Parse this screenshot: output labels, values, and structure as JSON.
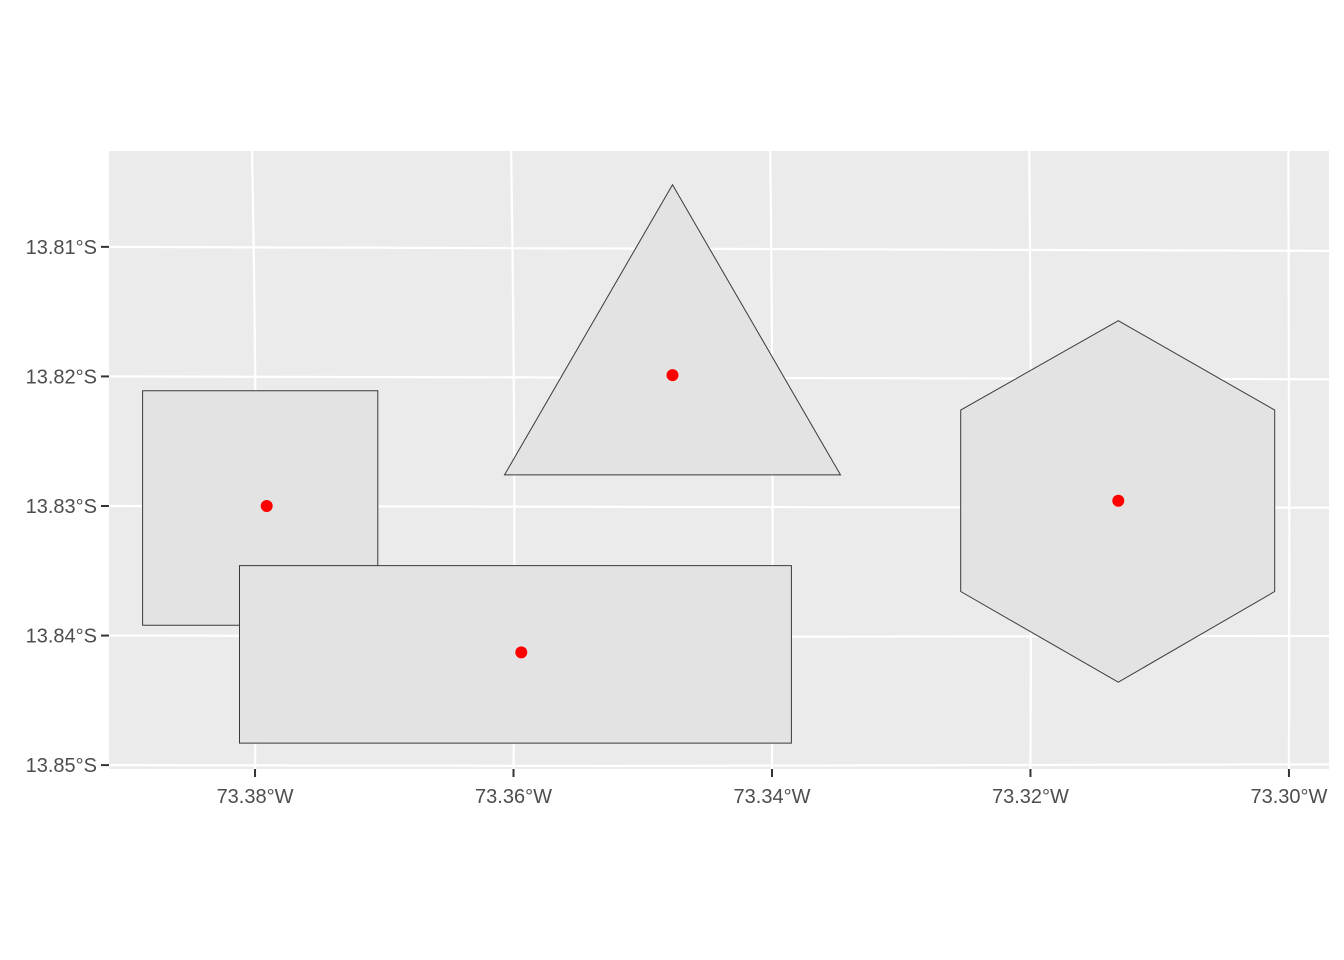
{
  "chart_data": {
    "type": "map",
    "title": "",
    "xlabel": "",
    "ylabel": "",
    "panel_background": "#ebebeb",
    "grid": true,
    "grid_color": "#ffffff",
    "shape_fill": "#e3e3e3",
    "shape_stroke": "#3a3a3a",
    "centroid_color": "#ff0000",
    "x_range": [
      -73.3913,
      -73.2969
    ],
    "y_range": [
      -13.8503,
      -13.8026
    ],
    "x_ticks": [
      {
        "value": -73.38,
        "label": "73.38°W"
      },
      {
        "value": -73.36,
        "label": "73.36°W"
      },
      {
        "value": -73.34,
        "label": "73.34°W"
      },
      {
        "value": -73.32,
        "label": "73.32°W"
      },
      {
        "value": -73.3,
        "label": "73.30°W"
      }
    ],
    "y_ticks": [
      {
        "value": -13.81,
        "label": "13.81°S"
      },
      {
        "value": -13.82,
        "label": "13.82°S"
      },
      {
        "value": -13.83,
        "label": "13.83°S"
      },
      {
        "value": -13.84,
        "label": "13.84°S"
      },
      {
        "value": -13.85,
        "label": "13.85°S"
      }
    ],
    "shapes": [
      {
        "name": "square",
        "coords": [
          [
            -73.3887,
            -13.8211
          ],
          [
            -73.3705,
            -13.8211
          ],
          [
            -73.3705,
            -13.8392
          ],
          [
            -73.3887,
            -13.8392
          ]
        ],
        "centroid": [
          -73.3791,
          -13.83
        ]
      },
      {
        "name": "triangle",
        "coords": [
          [
            -73.3477,
            -13.8052
          ],
          [
            -73.3607,
            -13.8276
          ],
          [
            -73.3347,
            -13.8276
          ]
        ],
        "centroid": [
          -73.3477,
          -13.8199
        ]
      },
      {
        "name": "hexagon",
        "coords": [
          [
            -73.3132,
            -13.8157
          ],
          [
            -73.3011,
            -13.8226
          ],
          [
            -73.3011,
            -13.8366
          ],
          [
            -73.3132,
            -13.8436
          ],
          [
            -73.3254,
            -13.8366
          ],
          [
            -73.3254,
            -13.8226
          ]
        ],
        "centroid": [
          -73.3132,
          -13.8296
        ]
      },
      {
        "name": "rectangle",
        "coords": [
          [
            -73.3812,
            -13.8346
          ],
          [
            -73.3385,
            -13.8346
          ],
          [
            -73.3385,
            -13.8483
          ],
          [
            -73.3812,
            -13.8483
          ]
        ],
        "centroid": [
          -73.3594,
          -13.8413
        ]
      }
    ]
  }
}
